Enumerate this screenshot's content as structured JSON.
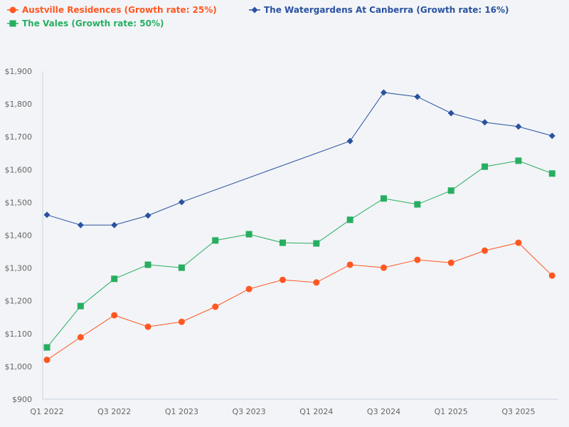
{
  "chart_data": {
    "type": "line",
    "x": [
      "Q1 2022",
      "Q2 2022",
      "Q3 2022",
      "Q4 2022",
      "Q1 2023",
      "Q2 2023",
      "Q3 2023",
      "Q4 2023",
      "Q1 2024",
      "Q2 2024",
      "Q3 2024",
      "Q4 2024",
      "Q1 2025",
      "Q2 2025",
      "Q3 2025",
      "Q4 2025"
    ],
    "x_tick_labels": [
      "Q1 2022",
      "Q3 2022",
      "Q1 2023",
      "Q3 2023",
      "Q1 2024",
      "Q3 2024",
      "Q1 2025",
      "Q3 2025"
    ],
    "ylim": [
      900,
      1900
    ],
    "y_ticks": [
      900,
      1000,
      1100,
      1200,
      1300,
      1400,
      1500,
      1600,
      1700,
      1800,
      1900
    ],
    "y_tick_format": "$",
    "grid": false,
    "legend_position": "top-left",
    "series": [
      {
        "name": "Austville Residences (Growth rate: 25%)",
        "color": "#ff5722",
        "marker": "circle",
        "values": [
          1020,
          1089,
          1156,
          1121,
          1136,
          1182,
          1236,
          1264,
          1256,
          1310,
          1301,
          1325,
          1316,
          1353,
          1377,
          1277
        ]
      },
      {
        "name": "The Watergardens At Canberra (Growth rate: 16%)",
        "color": "#2a52a0",
        "marker": "diamond",
        "values": [
          1462,
          1431,
          1431,
          1460,
          1501,
          null,
          null,
          null,
          null,
          1687,
          1835,
          1822,
          1772,
          1744,
          1731,
          1703
        ]
      },
      {
        "name": "The Vales (Growth rate: 50%)",
        "color": "#27ae60",
        "marker": "square",
        "values": [
          1058,
          1184,
          1267,
          1310,
          1301,
          1384,
          1403,
          1377,
          1375,
          1447,
          1512,
          1494,
          1536,
          1609,
          1627,
          1588
        ]
      }
    ]
  }
}
